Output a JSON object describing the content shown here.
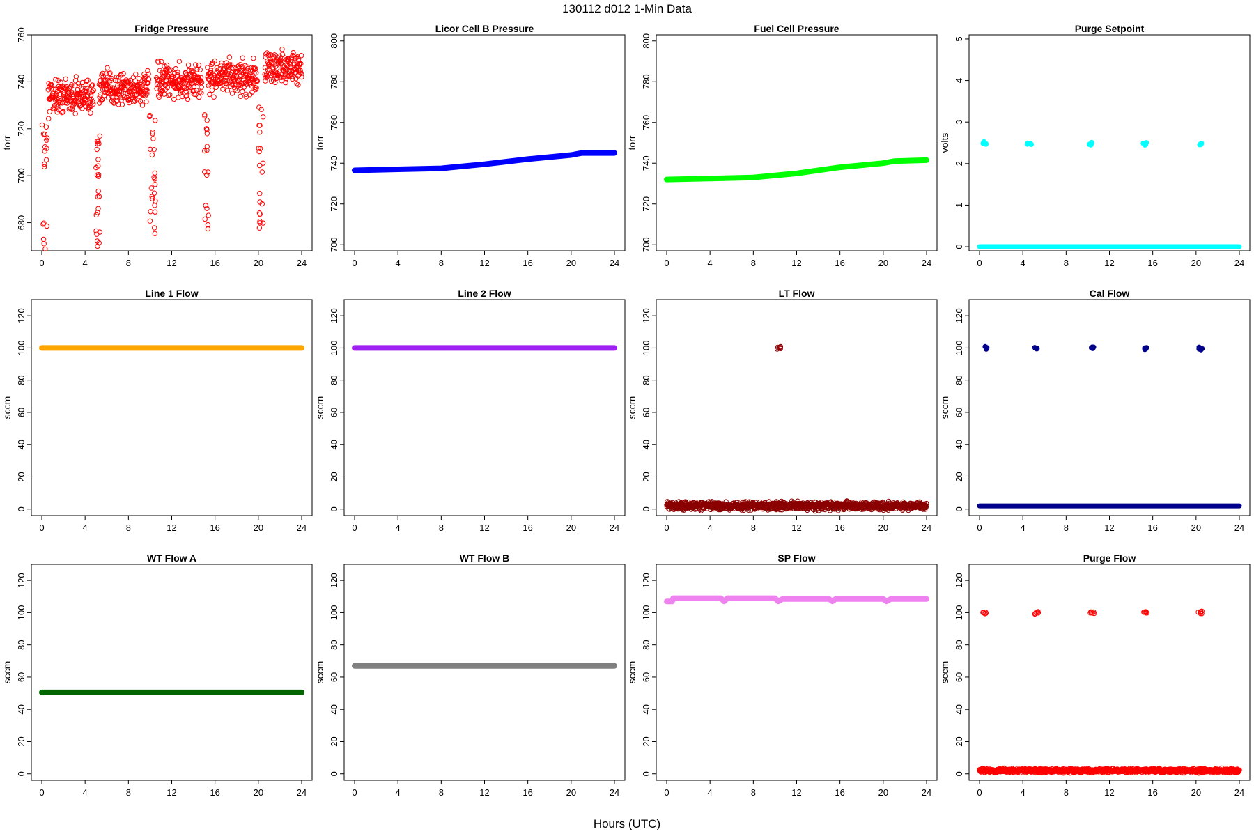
{
  "figure": {
    "title": "130112   d012   1-Min Data",
    "xlabel": "Hours (UTC)"
  },
  "chart_data": [
    {
      "name": "fridge-pressure",
      "title": "Fridge Pressure",
      "type": "scatter",
      "ylabel": "torr",
      "xlim": [
        0,
        24
      ],
      "ylim": [
        668,
        760
      ],
      "yticks": [
        680,
        700,
        720,
        740,
        760
      ],
      "xticks": [
        0,
        4,
        8,
        12,
        16,
        20,
        24
      ],
      "color": "#ff0000",
      "marker": "open-circle",
      "series": {
        "baseline_segments": [
          [
            0.6,
            4.8,
            734
          ],
          [
            5.3,
            9.9,
            737
          ],
          [
            10.6,
            14.8,
            740
          ],
          [
            15.3,
            19.9,
            742
          ],
          [
            20.6,
            24.0,
            746
          ]
        ],
        "noise": 6,
        "dips": [
          [
            0.0,
            0.5,
            [
              672,
              680,
              705,
              710,
              715,
              720
            ]
          ],
          [
            5.0,
            5.4,
            [
              671,
              677,
              684,
              692,
              700,
              706,
              712,
              716
            ]
          ],
          [
            9.9,
            10.5,
            [
              678,
              685,
              690,
              695,
              700,
              710,
              718,
              725
            ]
          ],
          [
            15.0,
            15.4,
            [
              678,
              686,
              700,
              710,
              716,
              725
            ]
          ],
          [
            20.0,
            20.5,
            [
              678,
              684,
              690,
              705,
              712,
              720,
              728
            ]
          ]
        ]
      }
    },
    {
      "name": "licor-cell-b-pressure",
      "title": "Licor Cell B Pressure",
      "type": "line",
      "ylabel": "torr",
      "xlim": [
        0,
        24
      ],
      "ylim": [
        697,
        803
      ],
      "yticks": [
        700,
        720,
        740,
        760,
        780,
        800
      ],
      "xticks": [
        0,
        4,
        8,
        12,
        16,
        20,
        24
      ],
      "color": "#0000ff",
      "marker": "thick",
      "x": [
        0,
        4,
        8,
        12,
        16,
        20,
        21,
        24
      ],
      "y": [
        736.5,
        737,
        737.5,
        739.5,
        742,
        744,
        745,
        745
      ]
    },
    {
      "name": "fuel-cell-pressure",
      "title": "Fuel Cell Pressure",
      "type": "line",
      "ylabel": "torr",
      "xlim": [
        0,
        24
      ],
      "ylim": [
        697,
        803
      ],
      "yticks": [
        700,
        720,
        740,
        760,
        780,
        800
      ],
      "xticks": [
        0,
        4,
        8,
        12,
        16,
        20,
        24
      ],
      "color": "#00ff00",
      "marker": "thick",
      "x": [
        0,
        4,
        8,
        12,
        16,
        20,
        21,
        24
      ],
      "y": [
        732,
        732.5,
        733,
        735,
        738,
        740,
        741,
        741.5
      ]
    },
    {
      "name": "purge-setpoint",
      "title": "Purge Setpoint",
      "type": "scatter",
      "ylabel": "volts",
      "xlim": [
        0,
        24
      ],
      "ylim": [
        -0.1,
        5.1
      ],
      "yticks": [
        0,
        1,
        2,
        3,
        4,
        5
      ],
      "xticks": [
        0,
        4,
        8,
        12,
        16,
        20,
        24
      ],
      "color": "#00ffff",
      "marker": "filled-circle",
      "series": {
        "baseline": 0,
        "spikes": [
          [
            0.2,
            2.5
          ],
          [
            4.4,
            2.47
          ],
          [
            10.1,
            2.47
          ],
          [
            15.1,
            2.47
          ],
          [
            20.2,
            2.47
          ]
        ]
      }
    },
    {
      "name": "line-1-flow",
      "title": "Line 1 Flow",
      "type": "line",
      "ylabel": "sccm",
      "xlim": [
        0,
        24
      ],
      "ylim": [
        -4,
        130
      ],
      "yticks": [
        0,
        20,
        40,
        60,
        80,
        100,
        120
      ],
      "xticks": [
        0,
        4,
        8,
        12,
        16,
        20,
        24
      ],
      "color": "#ffa500",
      "marker": "thick",
      "x": [
        0,
        24
      ],
      "y": [
        100,
        100
      ]
    },
    {
      "name": "line-2-flow",
      "title": "Line 2 Flow",
      "type": "line",
      "ylabel": "sccm",
      "xlim": [
        0,
        24
      ],
      "ylim": [
        -4,
        130
      ],
      "yticks": [
        0,
        20,
        40,
        60,
        80,
        100,
        120
      ],
      "xticks": [
        0,
        4,
        8,
        12,
        16,
        20,
        24
      ],
      "color": "#a020f0",
      "marker": "thick",
      "x": [
        0,
        24
      ],
      "y": [
        100,
        100
      ]
    },
    {
      "name": "lt-flow",
      "title": "LT Flow",
      "type": "scatter",
      "ylabel": "sccm",
      "xlim": [
        0,
        24
      ],
      "ylim": [
        -4,
        130
      ],
      "yticks": [
        0,
        20,
        40,
        60,
        80,
        100,
        120
      ],
      "xticks": [
        0,
        4,
        8,
        12,
        16,
        20,
        24
      ],
      "color": "#8b0000",
      "marker": "open-circle",
      "series": {
        "baseline": 2,
        "noise": 2,
        "spikes": [
          [
            10.2,
            100
          ]
        ]
      }
    },
    {
      "name": "cal-flow",
      "title": "Cal Flow",
      "type": "scatter",
      "ylabel": "sccm",
      "xlim": [
        0,
        24
      ],
      "ylim": [
        -4,
        130
      ],
      "yticks": [
        0,
        20,
        40,
        60,
        80,
        100,
        120
      ],
      "xticks": [
        0,
        4,
        8,
        12,
        16,
        20,
        24
      ],
      "color": "#00008b",
      "marker": "filled-circle",
      "series": {
        "baseline": 2,
        "spikes": [
          [
            0.3,
            100
          ],
          [
            5.1,
            100
          ],
          [
            10.2,
            100
          ],
          [
            15.1,
            100
          ],
          [
            20.2,
            100
          ]
        ]
      }
    },
    {
      "name": "wt-flow-a",
      "title": "WT Flow A",
      "type": "line",
      "ylabel": "sccm",
      "xlim": [
        0,
        24
      ],
      "ylim": [
        -4,
        130
      ],
      "yticks": [
        0,
        20,
        40,
        60,
        80,
        100,
        120
      ],
      "xticks": [
        0,
        4,
        8,
        12,
        16,
        20,
        24
      ],
      "color": "#006400",
      "marker": "thick",
      "x": [
        0,
        24
      ],
      "y": [
        50.5,
        50.5
      ]
    },
    {
      "name": "wt-flow-b",
      "title": "WT Flow B",
      "type": "line",
      "ylabel": "sccm",
      "xlim": [
        0,
        24
      ],
      "ylim": [
        -4,
        130
      ],
      "yticks": [
        0,
        20,
        40,
        60,
        80,
        100,
        120
      ],
      "xticks": [
        0,
        4,
        8,
        12,
        16,
        20,
        24
      ],
      "color": "#808080",
      "marker": "thick",
      "x": [
        0,
        24
      ],
      "y": [
        67,
        67
      ]
    },
    {
      "name": "sp-flow",
      "title": "SP Flow",
      "type": "line",
      "ylabel": "sccm",
      "xlim": [
        0,
        24
      ],
      "ylim": [
        -4,
        130
      ],
      "yticks": [
        0,
        20,
        40,
        60,
        80,
        100,
        120
      ],
      "xticks": [
        0,
        4,
        8,
        12,
        16,
        20,
        24
      ],
      "color": "#ee82ee",
      "marker": "thick",
      "x": [
        0,
        0.5,
        0.6,
        5.0,
        5.3,
        5.6,
        10.0,
        10.3,
        10.7,
        15.0,
        15.3,
        15.6,
        20.0,
        20.3,
        20.7,
        24
      ],
      "y": [
        107,
        107,
        109,
        109,
        107,
        109,
        109,
        107,
        108.5,
        108.5,
        107,
        108.5,
        108.5,
        107,
        108.5,
        108.5
      ]
    },
    {
      "name": "purge-flow",
      "title": "Purge Flow",
      "type": "scatter",
      "ylabel": "sccm",
      "xlim": [
        0,
        24
      ],
      "ylim": [
        -4,
        130
      ],
      "yticks": [
        0,
        20,
        40,
        60,
        80,
        100,
        120
      ],
      "xticks": [
        0,
        4,
        8,
        12,
        16,
        20,
        24
      ],
      "color": "#ff0000",
      "marker": "open-circle",
      "series": {
        "baseline": 2,
        "noise": 1,
        "spikes": [
          [
            0.3,
            100
          ],
          [
            5.1,
            100
          ],
          [
            10.2,
            100
          ],
          [
            15.1,
            100
          ],
          [
            20.2,
            100
          ]
        ]
      }
    }
  ]
}
